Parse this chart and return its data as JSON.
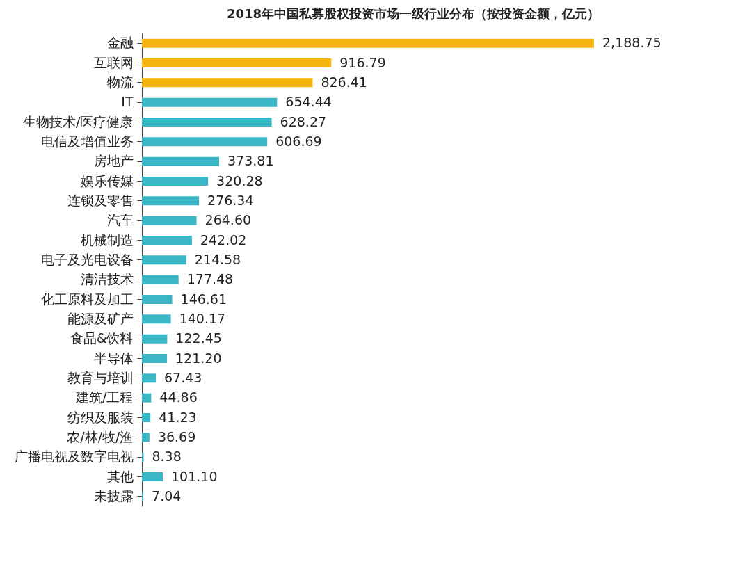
{
  "chart_data": {
    "type": "bar",
    "orientation": "horizontal",
    "title": "2018年中国私募股权投资市场一级行业分布（按投资金额，亿元）",
    "categories": [
      "金融",
      "互联网",
      "物流",
      "IT",
      "生物技术/医疗健康",
      "电信及增值业务",
      "房地产",
      "娱乐传媒",
      "连锁及零售",
      "汽车",
      "机械制造",
      "电子及光电设备",
      "清洁技术",
      "化工原料及加工",
      "能源及矿产",
      "食品&饮料",
      "半导体",
      "教育与培训",
      "建筑/工程",
      "纺织及服装",
      "农/林/牧/渔",
      "广播电视及数字电视",
      "其他",
      "未披露"
    ],
    "values": [
      2188.75,
      916.79,
      826.41,
      654.44,
      628.27,
      606.69,
      373.81,
      320.28,
      276.34,
      264.6,
      242.02,
      214.58,
      177.48,
      146.61,
      140.17,
      122.45,
      121.2,
      67.43,
      44.86,
      41.23,
      36.69,
      8.38,
      101.1,
      7.04
    ],
    "value_labels": [
      "2,188.75",
      "916.79",
      "826.41",
      "654.44",
      "628.27",
      "606.69",
      "373.81",
      "320.28",
      "276.34",
      "264.60",
      "242.02",
      "214.58",
      "177.48",
      "146.61",
      "140.17",
      "122.45",
      "121.20",
      "67.43",
      "44.86",
      "41.23",
      "36.69",
      "8.38",
      "101.10",
      "7.04"
    ],
    "colors": [
      "#f5b50f",
      "#f5b50f",
      "#f5b50f",
      "#3bb6c6",
      "#3bb6c6",
      "#3bb6c6",
      "#3bb6c6",
      "#3bb6c6",
      "#3bb6c6",
      "#3bb6c6",
      "#3bb6c6",
      "#3bb6c6",
      "#3bb6c6",
      "#3bb6c6",
      "#3bb6c6",
      "#3bb6c6",
      "#3bb6c6",
      "#3bb6c6",
      "#3bb6c6",
      "#3bb6c6",
      "#3bb6c6",
      "#3bb6c6",
      "#3bb6c6",
      "#3bb6c6"
    ],
    "grid": false
  }
}
